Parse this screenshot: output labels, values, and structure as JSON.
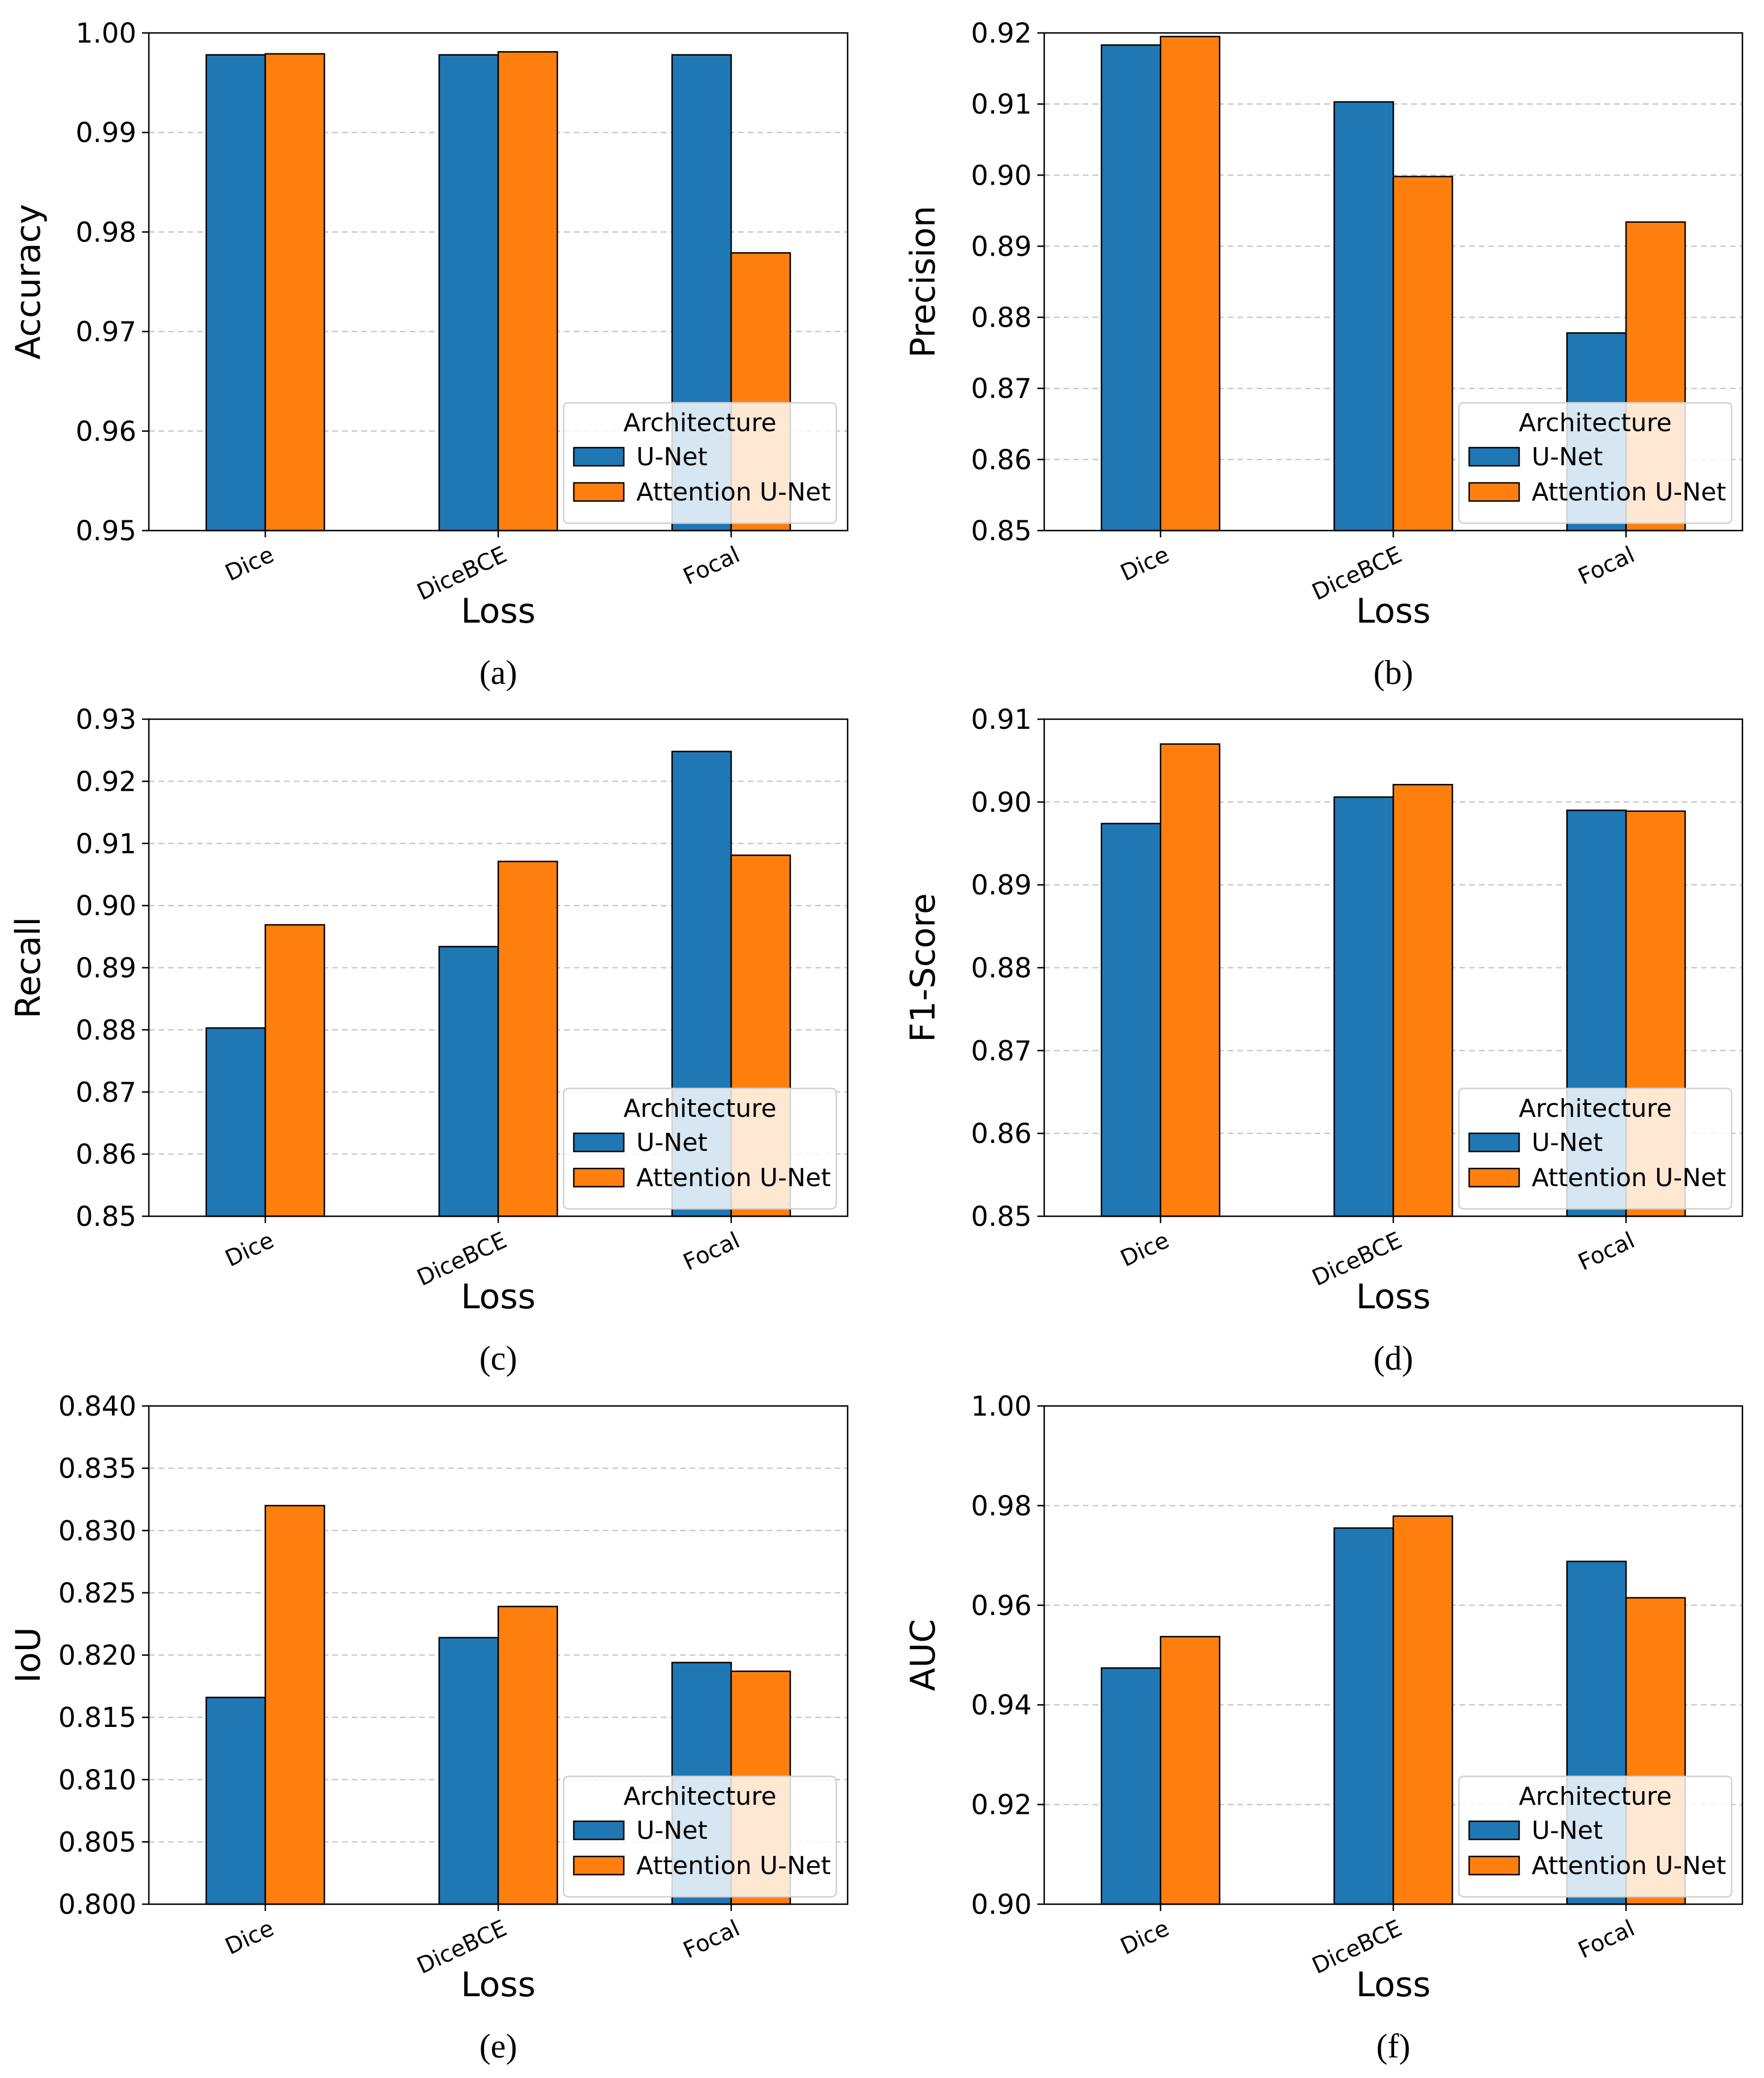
{
  "series_colors": {
    "unet": "#1f77b4",
    "attention_unet": "#ff7f0e"
  },
  "legend": {
    "title": "Architecture",
    "entries": [
      "U-Net",
      "Attention U-Net"
    ]
  },
  "chart_data": [
    {
      "panel": "(a)",
      "type": "bar",
      "title": "",
      "xlabel": "Loss",
      "ylabel": "Accuracy",
      "categories": [
        "Dice",
        "DiceBCE",
        "Focal"
      ],
      "ylim": [
        0.95,
        1.0
      ],
      "yticks": [
        "0.95",
        "0.96",
        "0.97",
        "0.98",
        "0.99",
        "1.00"
      ],
      "series": [
        {
          "name": "U-Net",
          "values": [
            0.9978,
            0.9978,
            0.9978
          ]
        },
        {
          "name": "Attention U-Net",
          "values": [
            0.9979,
            0.9981,
            0.9779
          ]
        }
      ],
      "legend_position": "lower-right",
      "grid": "y-dashed"
    },
    {
      "panel": "(b)",
      "type": "bar",
      "title": "",
      "xlabel": "Loss",
      "ylabel": "Precision",
      "categories": [
        "Dice",
        "DiceBCE",
        "Focal"
      ],
      "ylim": [
        0.85,
        0.92
      ],
      "yticks": [
        "0.85",
        "0.86",
        "0.87",
        "0.88",
        "0.89",
        "0.90",
        "0.91",
        "0.92"
      ],
      "series": [
        {
          "name": "U-Net",
          "values": [
            0.9183,
            0.9103,
            0.8778
          ]
        },
        {
          "name": "Attention U-Net",
          "values": [
            0.9195,
            0.8998,
            0.8934
          ]
        }
      ],
      "legend_position": "lower-right",
      "grid": "y-dashed"
    },
    {
      "panel": "(c)",
      "type": "bar",
      "title": "",
      "xlabel": "Loss",
      "ylabel": "Recall",
      "categories": [
        "Dice",
        "DiceBCE",
        "Focal"
      ],
      "ylim": [
        0.85,
        0.93
      ],
      "yticks": [
        "0.85",
        "0.86",
        "0.87",
        "0.88",
        "0.89",
        "0.90",
        "0.91",
        "0.92",
        "0.93"
      ],
      "series": [
        {
          "name": "U-Net",
          "values": [
            0.8803,
            0.8934,
            0.9248
          ]
        },
        {
          "name": "Attention U-Net",
          "values": [
            0.8969,
            0.9071,
            0.9081
          ]
        }
      ],
      "legend_position": "lower-right",
      "grid": "y-dashed"
    },
    {
      "panel": "(d)",
      "type": "bar",
      "title": "",
      "xlabel": "Loss",
      "ylabel": "F1-Score",
      "categories": [
        "Dice",
        "DiceBCE",
        "Focal"
      ],
      "ylim": [
        0.85,
        0.91
      ],
      "yticks": [
        "0.85",
        "0.86",
        "0.87",
        "0.88",
        "0.89",
        "0.90",
        "0.91"
      ],
      "series": [
        {
          "name": "U-Net",
          "values": [
            0.8974,
            0.9006,
            0.899
          ]
        },
        {
          "name": "Attention U-Net",
          "values": [
            0.907,
            0.9021,
            0.8989
          ]
        }
      ],
      "legend_position": "lower-right",
      "grid": "y-dashed"
    },
    {
      "panel": "(e)",
      "type": "bar",
      "title": "",
      "xlabel": "Loss",
      "ylabel": "IoU",
      "categories": [
        "Dice",
        "DiceBCE",
        "Focal"
      ],
      "ylim": [
        0.8,
        0.84
      ],
      "yticks": [
        "0.800",
        "0.805",
        "0.810",
        "0.815",
        "0.820",
        "0.825",
        "0.830",
        "0.835",
        "0.840"
      ],
      "series": [
        {
          "name": "U-Net",
          "values": [
            0.8166,
            0.8214,
            0.8194
          ]
        },
        {
          "name": "Attention U-Net",
          "values": [
            0.832,
            0.8239,
            0.8187
          ]
        }
      ],
      "legend_position": "lower-right",
      "grid": "y-dashed"
    },
    {
      "panel": "(f)",
      "type": "bar",
      "title": "",
      "xlabel": "Loss",
      "ylabel": "AUC",
      "categories": [
        "Dice",
        "DiceBCE",
        "Focal"
      ],
      "ylim": [
        0.9,
        1.0
      ],
      "yticks": [
        "0.90",
        "0.92",
        "0.94",
        "0.96",
        "0.98",
        "1.00"
      ],
      "series": [
        {
          "name": "U-Net",
          "values": [
            0.9474,
            0.9755,
            0.9688
          ]
        },
        {
          "name": "Attention U-Net",
          "values": [
            0.9537,
            0.9779,
            0.9615
          ]
        }
      ],
      "legend_position": "lower-right",
      "grid": "y-dashed"
    }
  ]
}
